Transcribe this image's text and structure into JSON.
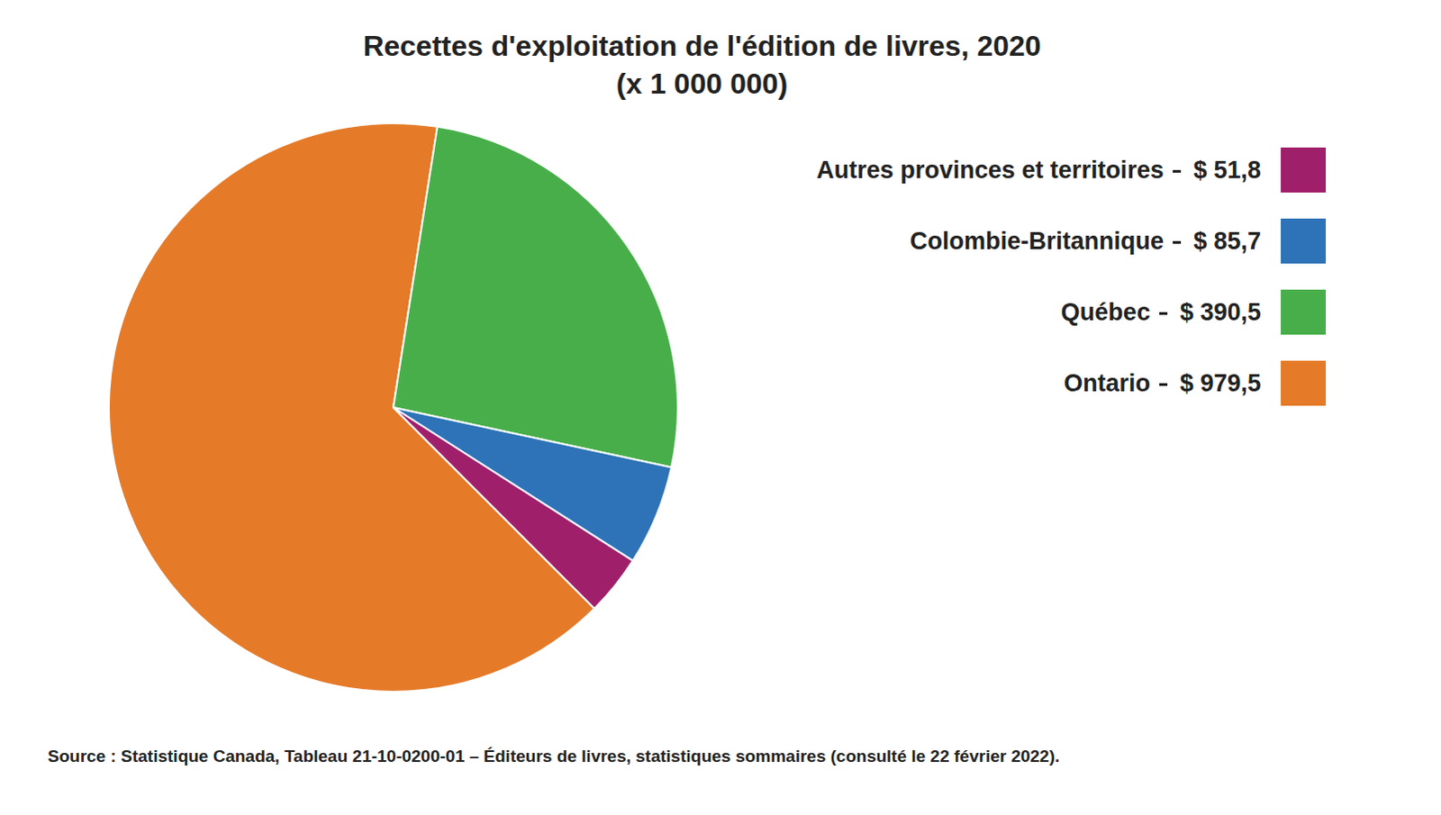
{
  "chart_data": {
    "type": "pie",
    "title": "Recettes d'exploitation de l'édition de livres, 2020",
    "subtitle": "(x 1 000 000)",
    "categories": [
      "Ontario",
      "Québec",
      "Colombie-Britannique",
      "Autres provinces et territoires"
    ],
    "values": [
      979.5,
      390.5,
      85.7,
      51.8
    ],
    "value_labels": [
      "$ 979,5",
      "$ 390,5",
      "$ 85,7",
      "$ 51,8"
    ],
    "colors": [
      "#e57a28",
      "#47ae4a",
      "#2e73b8",
      "#a01f6a"
    ],
    "annotations": [
      "Source : Statistique Canada, Tableau 21-10-0200-01 – Éditeurs de livres, statistiques sommaires (consulté le 22 février 2022)."
    ]
  }
}
